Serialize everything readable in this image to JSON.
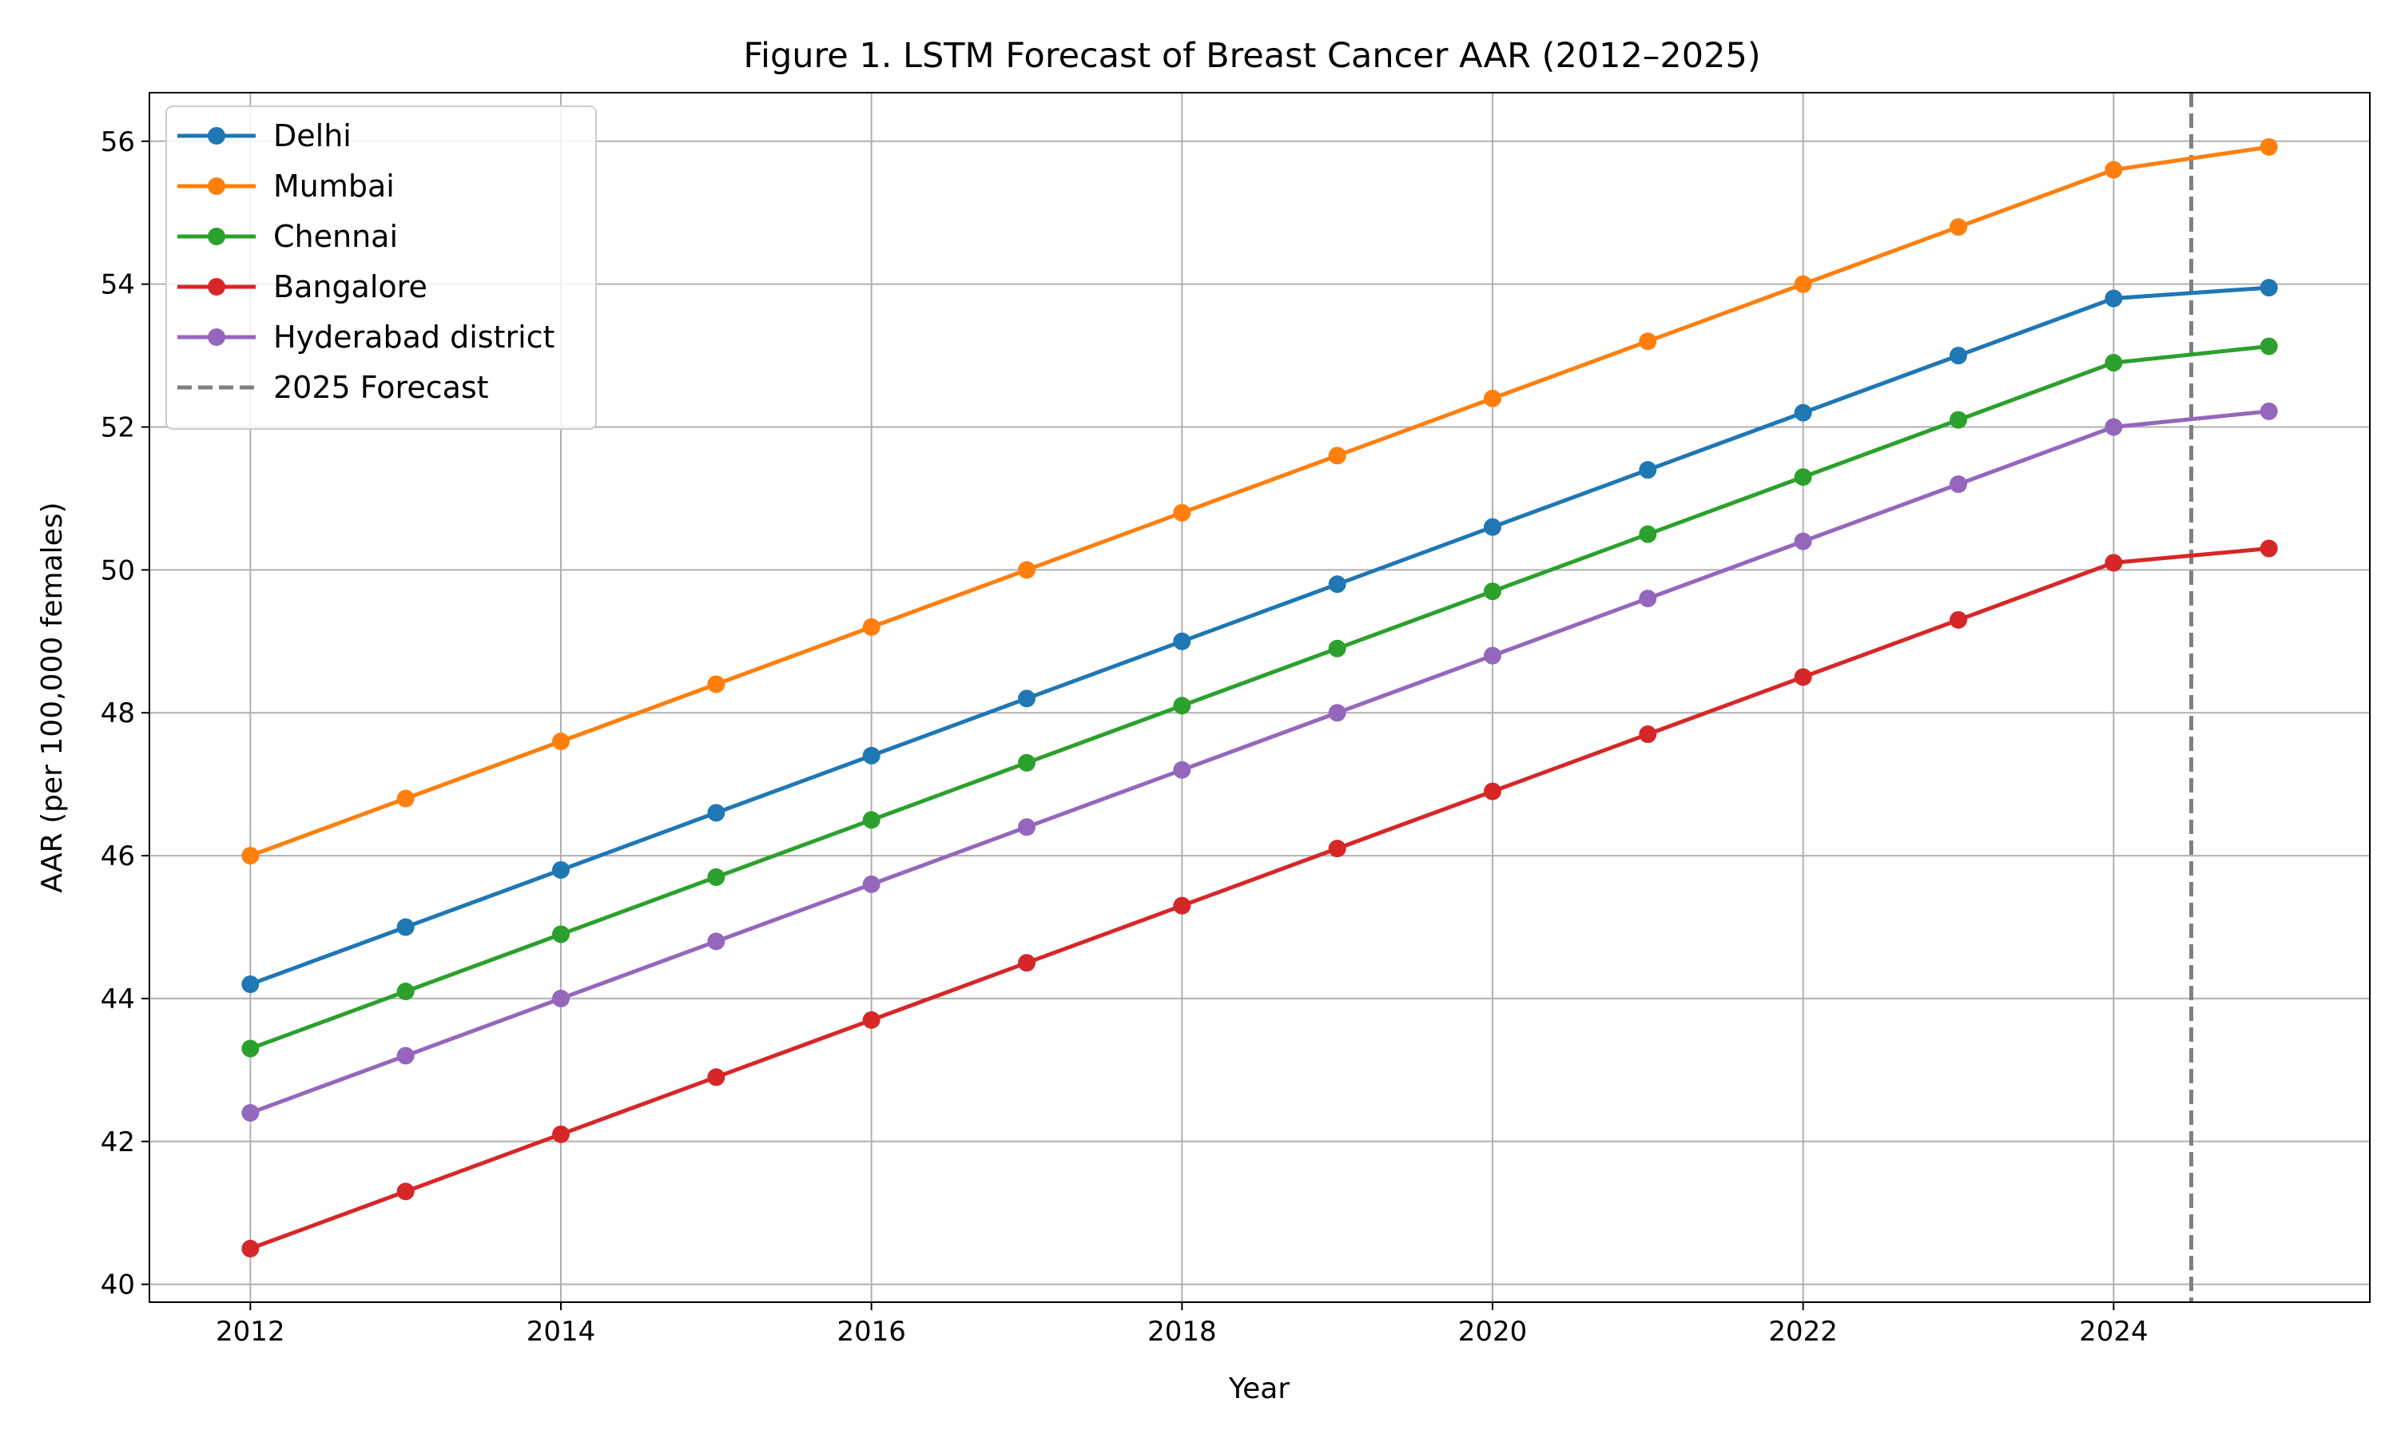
{
  "chart_data": {
    "type": "line",
    "title": "Figure 1. LSTM Forecast of Breast Cancer AAR (2012–2025)",
    "xlabel": "Year",
    "ylabel": "AAR (per 100,000 females)",
    "xlim": [
      2011.35,
      2025.65
    ],
    "ylim": [
      39.75,
      56.68
    ],
    "x_ticks": [
      2012,
      2014,
      2016,
      2018,
      2020,
      2022,
      2024
    ],
    "y_ticks": [
      40,
      42,
      44,
      46,
      48,
      50,
      52,
      54,
      56
    ],
    "grid": true,
    "legend_position": "top-left",
    "x": [
      2012,
      2013,
      2014,
      2015,
      2016,
      2017,
      2018,
      2019,
      2020,
      2021,
      2022,
      2023,
      2024,
      2025
    ],
    "series": [
      {
        "name": "Delhi",
        "color": "#1f77b4",
        "values": [
          44.2,
          45.0,
          45.8,
          46.6,
          47.4,
          48.2,
          49.0,
          49.8,
          50.6,
          51.4,
          52.2,
          53.0,
          53.8,
          53.95
        ]
      },
      {
        "name": "Mumbai",
        "color": "#ff7f0e",
        "values": [
          46.0,
          46.8,
          47.6,
          48.4,
          49.2,
          50.0,
          50.8,
          51.6,
          52.4,
          53.2,
          54.0,
          54.8,
          55.6,
          55.92
        ]
      },
      {
        "name": "Chennai",
        "color": "#2ca02c",
        "values": [
          43.3,
          44.1,
          44.9,
          45.7,
          46.5,
          47.3,
          48.1,
          48.9,
          49.7,
          50.5,
          51.3,
          52.1,
          52.9,
          53.13
        ]
      },
      {
        "name": "Bangalore",
        "color": "#d62728",
        "values": [
          40.5,
          41.3,
          42.1,
          42.9,
          43.7,
          44.5,
          45.3,
          46.1,
          46.9,
          47.7,
          48.5,
          49.3,
          50.1,
          50.3
        ]
      },
      {
        "name": "Hyderabad district",
        "color": "#9467bd",
        "values": [
          42.4,
          43.2,
          44.0,
          44.8,
          45.6,
          46.4,
          47.2,
          48.0,
          48.8,
          49.6,
          50.4,
          51.2,
          52.0,
          52.22
        ]
      }
    ],
    "forecast_line": {
      "name": "2025 Forecast",
      "x": 2024.5,
      "color": "#808080",
      "style": "dashed"
    }
  }
}
